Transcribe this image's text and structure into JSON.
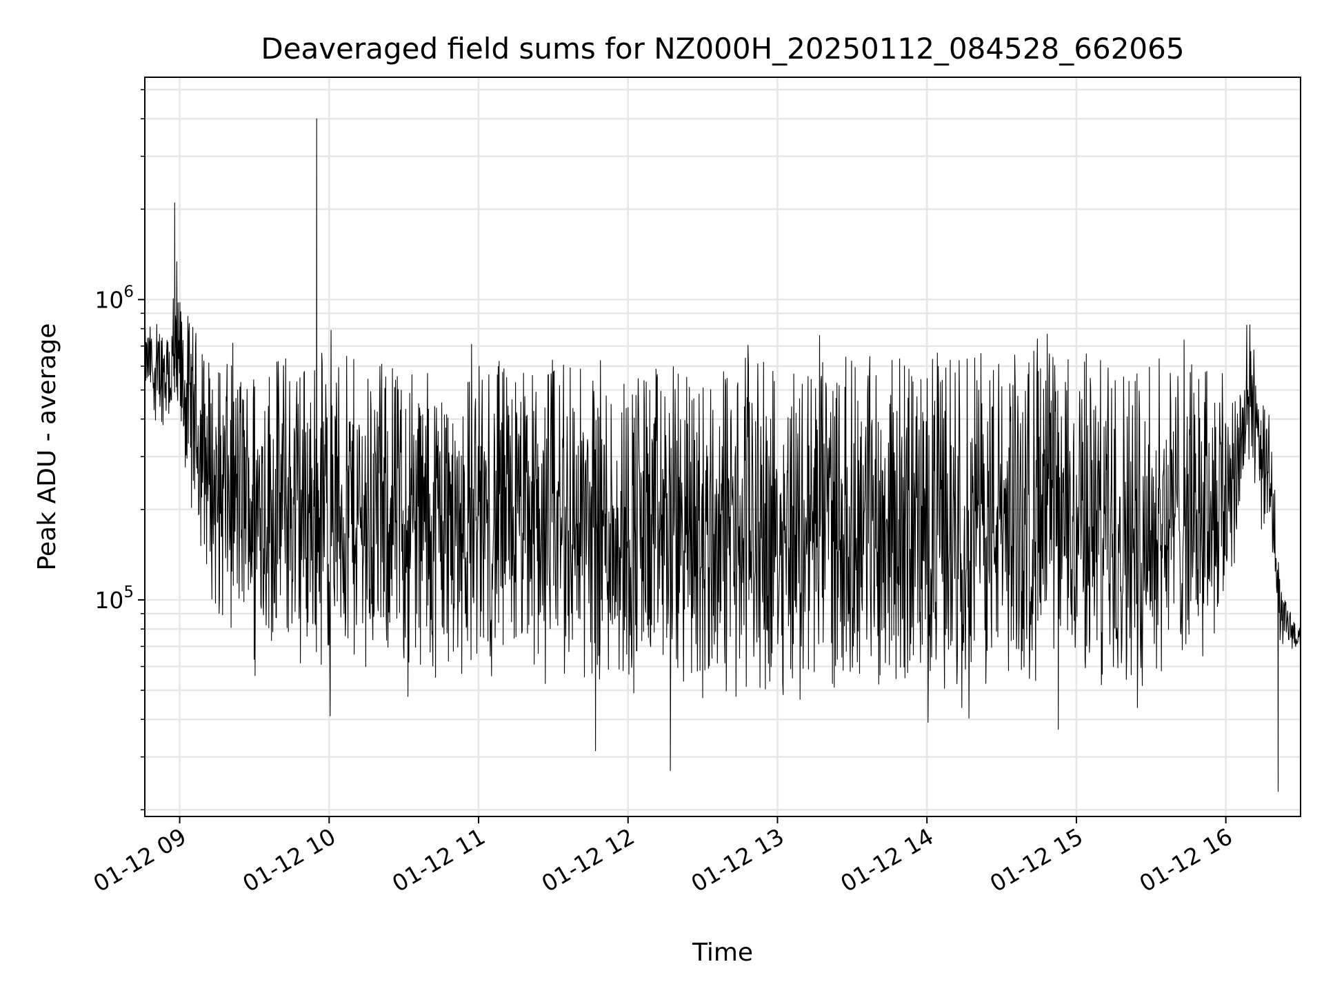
{
  "chart_data": {
    "type": "line",
    "title": "Deaveraged field sums for NZ000H_20250112_084528_662065",
    "xlabel": "Time",
    "ylabel": "Peak ADU - average",
    "yscale": "log",
    "xlim": [
      "01-12 08:46",
      "01-12 16:30"
    ],
    "ylim": [
      19000,
      5500000
    ],
    "grid": true,
    "line_color": "#000000",
    "x_ticks": [
      {
        "t": "01-12 09:00",
        "label": "01-12 09"
      },
      {
        "t": "01-12 10:00",
        "label": "01-12 10"
      },
      {
        "t": "01-12 11:00",
        "label": "01-12 11"
      },
      {
        "t": "01-12 12:00",
        "label": "01-12 12"
      },
      {
        "t": "01-12 13:00",
        "label": "01-12 13"
      },
      {
        "t": "01-12 14:00",
        "label": "01-12 14"
      },
      {
        "t": "01-12 15:00",
        "label": "01-12 15"
      },
      {
        "t": "01-12 16:00",
        "label": "01-12 16"
      }
    ],
    "y_ticks": [
      {
        "value": 100000,
        "base": "10",
        "exp": "5"
      },
      {
        "value": 1000000,
        "base": "10",
        "exp": "6"
      }
    ],
    "series_envelope": [
      {
        "t": "01-12 08:46",
        "high": 800000,
        "low": 480000
      },
      {
        "t": "01-12 09:00",
        "high": 1000000,
        "low": 300000
      },
      {
        "t": "01-12 09:15",
        "high": 600000,
        "low": 80000
      },
      {
        "t": "01-12 09:45",
        "high": 700000,
        "low": 60000
      },
      {
        "t": "01-12 10:30",
        "high": 600000,
        "low": 55000
      },
      {
        "t": "01-12 11:30",
        "high": 650000,
        "low": 50000
      },
      {
        "t": "01-12 12:30",
        "high": 600000,
        "low": 45000
      },
      {
        "t": "01-12 13:30",
        "high": 650000,
        "low": 50000
      },
      {
        "t": "01-12 14:30",
        "high": 680000,
        "low": 50000
      },
      {
        "t": "01-12 15:30",
        "high": 650000,
        "low": 50000
      },
      {
        "t": "01-12 16:00",
        "high": 600000,
        "low": 80000
      },
      {
        "t": "01-12 16:10",
        "high": 900000,
        "low": 250000
      },
      {
        "t": "01-12 16:18",
        "high": 400000,
        "low": 150000
      },
      {
        "t": "01-12 16:22",
        "high": 150000,
        "low": 50000
      },
      {
        "t": "01-12 16:30",
        "high": 90000,
        "low": 60000
      }
    ],
    "notable_points": [
      {
        "t": "01-12 08:58",
        "value": 2100000
      },
      {
        "t": "01-12 09:55",
        "value": 4000000
      },
      {
        "t": "01-12 12:17",
        "value": 27000
      },
      {
        "t": "01-12 16:21",
        "value": 23000
      }
    ]
  }
}
